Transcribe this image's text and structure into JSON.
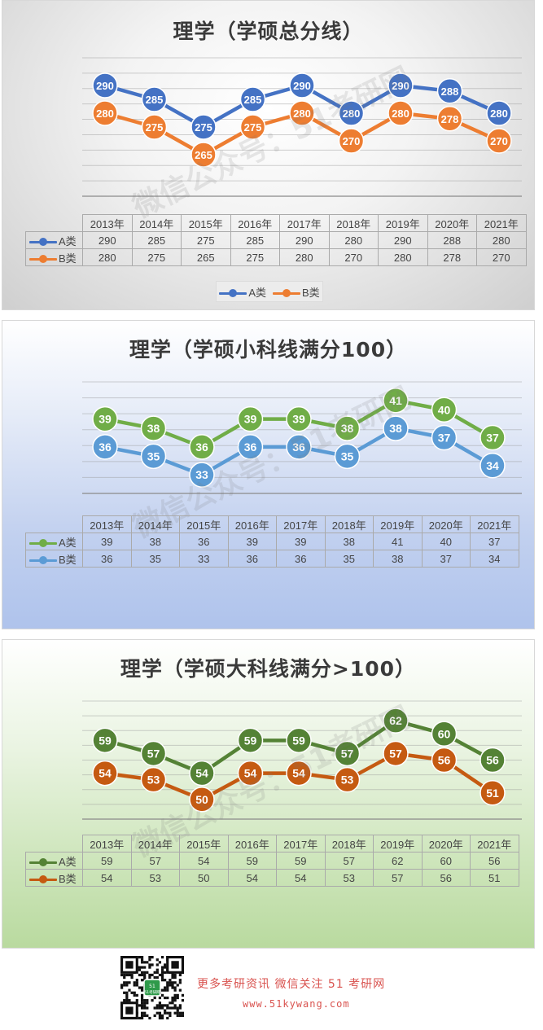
{
  "watermark": "微信公众号：51考研网",
  "chart_data": [
    {
      "type": "line",
      "title": "理学（学硕总分线）",
      "categories": [
        "2013年",
        "2014年",
        "2015年",
        "2016年",
        "2017年",
        "2018年",
        "2019年",
        "2020年",
        "2021年"
      ],
      "series": [
        {
          "name": "A类",
          "values": [
            290,
            285,
            275,
            285,
            290,
            280,
            290,
            288,
            280
          ],
          "color": "#4472c4"
        },
        {
          "name": "B类",
          "values": [
            280,
            275,
            265,
            275,
            280,
            270,
            280,
            278,
            270
          ],
          "color": "#ed7d31"
        }
      ],
      "ylim": [
        250,
        300
      ],
      "grid": true,
      "legend": "bottom",
      "data_table": true
    },
    {
      "type": "line",
      "title": "理学（学硕小科线满分100）",
      "categories": [
        "2013年",
        "2014年",
        "2015年",
        "2016年",
        "2017年",
        "2018年",
        "2019年",
        "2020年",
        "2021年"
      ],
      "series": [
        {
          "name": "A类",
          "values": [
            39,
            38,
            36,
            39,
            39,
            38,
            41,
            40,
            37
          ],
          "color": "#70ad47"
        },
        {
          "name": "B类",
          "values": [
            36,
            35,
            33,
            36,
            36,
            35,
            38,
            37,
            34
          ],
          "color": "#5b9bd5"
        }
      ],
      "ylim": [
        31,
        43
      ],
      "grid": true,
      "data_table": true
    },
    {
      "type": "line",
      "title": "理学（学硕大科线满分>100）",
      "categories": [
        "2013年",
        "2014年",
        "2015年",
        "2016年",
        "2017年",
        "2018年",
        "2019年",
        "2020年",
        "2021年"
      ],
      "series": [
        {
          "name": "A类",
          "values": [
            59,
            57,
            54,
            59,
            59,
            57,
            62,
            60,
            56
          ],
          "color": "#548235"
        },
        {
          "name": "B类",
          "values": [
            54,
            53,
            50,
            54,
            54,
            53,
            57,
            56,
            51
          ],
          "color": "#c55a11"
        }
      ],
      "ylim": [
        47,
        65
      ],
      "grid": true,
      "data_table": true
    }
  ],
  "footer": {
    "line1": "更多考研资讯 微信关注 51 考研网",
    "line2": "www.51kywang.com",
    "qr_center_text": "51考研网"
  }
}
